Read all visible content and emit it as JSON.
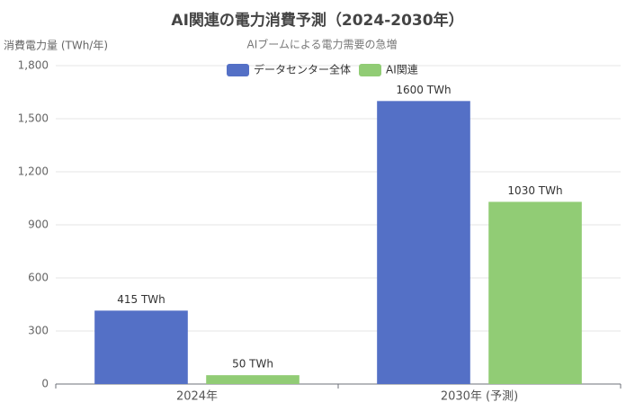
{
  "chart_data": {
    "type": "bar",
    "title": "AI関連の電力消費予測（2024-2030年）",
    "subtitle": "AIブームによる電力需要の急増",
    "y_axis_label": "消費電力量 (TWh/年)",
    "categories": [
      "2024年",
      "2030年 (予測)"
    ],
    "series": [
      {
        "name": "データセンター全体",
        "color": "#5470c6",
        "values": [
          415,
          1600
        ],
        "value_labels": [
          "415 TWh",
          "1600 TWh"
        ]
      },
      {
        "name": "AI関連",
        "color": "#91cc75",
        "values": [
          50,
          1030
        ],
        "value_labels": [
          "50 TWh",
          "1030 TWh"
        ]
      }
    ],
    "ylim": [
      0,
      1800
    ],
    "yticks": [
      0,
      300,
      600,
      900,
      {
        "value": 1200,
        "label": "1,200"
      },
      {
        "value": 1500,
        "label": "1,500"
      },
      {
        "value": 1800,
        "label": "1,800"
      }
    ],
    "grid": true,
    "legend": "top"
  }
}
